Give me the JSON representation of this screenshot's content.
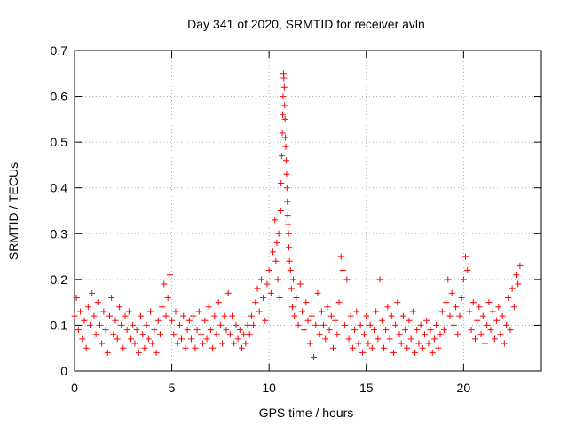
{
  "chart_data": {
    "type": "scatter",
    "title": "Day 341 of 2020, SRMTID for receiver avln",
    "xlabel": "GPS time / hours",
    "ylabel": "SRMTID / TECUs",
    "xlim": [
      0,
      24
    ],
    "ylim": [
      0,
      0.7
    ],
    "xticks": [
      0,
      5,
      10,
      15,
      20
    ],
    "yticks": [
      0,
      0.1,
      0.2,
      0.3,
      0.4,
      0.5,
      0.6,
      0.7
    ],
    "xtick_labels": [
      "0",
      "5",
      "10",
      "15",
      "20"
    ],
    "ytick_labels": [
      "0",
      "0.1",
      "0.2",
      "0.3",
      "0.4",
      "0.5",
      "0.6",
      "0.7"
    ],
    "grid": true,
    "marker": "+",
    "color": "#ff0000",
    "x_data_range": [
      0,
      22.9
    ],
    "series": [
      {
        "name": "SRMTID",
        "points": [
          [
            0.0,
            0.12
          ],
          [
            0.1,
            0.16
          ],
          [
            0.2,
            0.09
          ],
          [
            0.3,
            0.13
          ],
          [
            0.4,
            0.07
          ],
          [
            0.5,
            0.11
          ],
          [
            0.6,
            0.05
          ],
          [
            0.7,
            0.14
          ],
          [
            0.8,
            0.1
          ],
          [
            0.9,
            0.17
          ],
          [
            1.0,
            0.12
          ],
          [
            1.1,
            0.08
          ],
          [
            1.2,
            0.15
          ],
          [
            1.3,
            0.1
          ],
          [
            1.4,
            0.06
          ],
          [
            1.5,
            0.13
          ],
          [
            1.6,
            0.09
          ],
          [
            1.7,
            0.04
          ],
          [
            1.8,
            0.12
          ],
          [
            1.9,
            0.16
          ],
          [
            2.0,
            0.08
          ],
          [
            2.1,
            0.11
          ],
          [
            2.2,
            0.07
          ],
          [
            2.3,
            0.14
          ],
          [
            2.4,
            0.1
          ],
          [
            2.5,
            0.05
          ],
          [
            2.6,
            0.12
          ],
          [
            2.7,
            0.09
          ],
          [
            2.8,
            0.13
          ],
          [
            2.9,
            0.07
          ],
          [
            3.0,
            0.1
          ],
          [
            3.1,
            0.06
          ],
          [
            3.2,
            0.09
          ],
          [
            3.3,
            0.04
          ],
          [
            3.4,
            0.12
          ],
          [
            3.5,
            0.08
          ],
          [
            3.6,
            0.05
          ],
          [
            3.7,
            0.1
          ],
          [
            3.8,
            0.07
          ],
          [
            3.9,
            0.13
          ],
          [
            4.0,
            0.06
          ],
          [
            4.1,
            0.09
          ],
          [
            4.2,
            0.04
          ],
          [
            4.3,
            0.11
          ],
          [
            4.4,
            0.08
          ],
          [
            4.5,
            0.14
          ],
          [
            4.6,
            0.19
          ],
          [
            4.7,
            0.12
          ],
          [
            4.8,
            0.16
          ],
          [
            4.9,
            0.21
          ],
          [
            5.0,
            0.11
          ],
          [
            5.1,
            0.08
          ],
          [
            5.2,
            0.13
          ],
          [
            5.3,
            0.06
          ],
          [
            5.4,
            0.1
          ],
          [
            5.5,
            0.07
          ],
          [
            5.6,
            0.12
          ],
          [
            5.7,
            0.05
          ],
          [
            5.8,
            0.09
          ],
          [
            5.9,
            0.11
          ],
          [
            6.0,
            0.07
          ],
          [
            6.1,
            0.12
          ],
          [
            6.2,
            0.05
          ],
          [
            6.3,
            0.09
          ],
          [
            6.4,
            0.13
          ],
          [
            6.5,
            0.08
          ],
          [
            6.6,
            0.06
          ],
          [
            6.7,
            0.11
          ],
          [
            6.8,
            0.07
          ],
          [
            6.9,
            0.14
          ],
          [
            7.0,
            0.09
          ],
          [
            7.1,
            0.05
          ],
          [
            7.2,
            0.12
          ],
          [
            7.3,
            0.08
          ],
          [
            7.4,
            0.15
          ],
          [
            7.5,
            0.1
          ],
          [
            7.6,
            0.06
          ],
          [
            7.7,
            0.12
          ],
          [
            7.8,
            0.09
          ],
          [
            7.9,
            0.17
          ],
          [
            8.0,
            0.08
          ],
          [
            8.1,
            0.12
          ],
          [
            8.2,
            0.06
          ],
          [
            8.3,
            0.1
          ],
          [
            8.4,
            0.07
          ],
          [
            8.5,
            0.09
          ],
          [
            8.6,
            0.05
          ],
          [
            8.7,
            0.08
          ],
          [
            8.8,
            0.06
          ],
          [
            8.9,
            0.1
          ],
          [
            9.0,
            0.08
          ],
          [
            9.1,
            0.12
          ],
          [
            9.2,
            0.1
          ],
          [
            9.3,
            0.15
          ],
          [
            9.4,
            0.18
          ],
          [
            9.5,
            0.13
          ],
          [
            9.6,
            0.2
          ],
          [
            9.7,
            0.16
          ],
          [
            9.8,
            0.11
          ],
          [
            9.9,
            0.19
          ],
          [
            10.0,
            0.22
          ],
          [
            10.1,
            0.17
          ],
          [
            10.2,
            0.26
          ],
          [
            10.3,
            0.33
          ],
          [
            10.35,
            0.24
          ],
          [
            10.4,
            0.28
          ],
          [
            10.45,
            0.2
          ],
          [
            10.5,
            0.3
          ],
          [
            10.55,
            0.16
          ],
          [
            10.6,
            0.35
          ],
          [
            10.62,
            0.41
          ],
          [
            10.65,
            0.47
          ],
          [
            10.68,
            0.52
          ],
          [
            10.7,
            0.56
          ],
          [
            10.72,
            0.6
          ],
          [
            10.74,
            0.65
          ],
          [
            10.76,
            0.64
          ],
          [
            10.78,
            0.62
          ],
          [
            10.8,
            0.58
          ],
          [
            10.82,
            0.55
          ],
          [
            10.84,
            0.51
          ],
          [
            10.86,
            0.49
          ],
          [
            10.88,
            0.46
          ],
          [
            10.9,
            0.43
          ],
          [
            10.92,
            0.4
          ],
          [
            10.94,
            0.37
          ],
          [
            10.96,
            0.34
          ],
          [
            10.98,
            0.32
          ],
          [
            11.0,
            0.3
          ],
          [
            11.02,
            0.27
          ],
          [
            11.05,
            0.24
          ],
          [
            11.1,
            0.22
          ],
          [
            11.15,
            0.18
          ],
          [
            11.2,
            0.14
          ],
          [
            11.25,
            0.2
          ],
          [
            11.3,
            0.12
          ],
          [
            11.4,
            0.16
          ],
          [
            11.5,
            0.1
          ],
          [
            11.6,
            0.19
          ],
          [
            11.7,
            0.13
          ],
          [
            11.8,
            0.09
          ],
          [
            11.9,
            0.15
          ],
          [
            12.0,
            0.11
          ],
          [
            12.1,
            0.06
          ],
          [
            12.2,
            0.12
          ],
          [
            12.3,
            0.03
          ],
          [
            12.4,
            0.1
          ],
          [
            12.5,
            0.17
          ],
          [
            12.6,
            0.08
          ],
          [
            12.7,
            0.13
          ],
          [
            12.8,
            0.1
          ],
          [
            12.9,
            0.07
          ],
          [
            13.0,
            0.14
          ],
          [
            13.1,
            0.09
          ],
          [
            13.2,
            0.12
          ],
          [
            13.3,
            0.05
          ],
          [
            13.4,
            0.11
          ],
          [
            13.5,
            0.08
          ],
          [
            13.6,
            0.15
          ],
          [
            13.7,
            0.25
          ],
          [
            13.8,
            0.22
          ],
          [
            13.9,
            0.1
          ],
          [
            14.0,
            0.2
          ],
          [
            14.1,
            0.07
          ],
          [
            14.2,
            0.12
          ],
          [
            14.3,
            0.05
          ],
          [
            14.4,
            0.09
          ],
          [
            14.5,
            0.13
          ],
          [
            14.6,
            0.06
          ],
          [
            14.7,
            0.1
          ],
          [
            14.8,
            0.04
          ],
          [
            14.9,
            0.08
          ],
          [
            15.0,
            0.12
          ],
          [
            15.1,
            0.06
          ],
          [
            15.2,
            0.1
          ],
          [
            15.3,
            0.05
          ],
          [
            15.4,
            0.09
          ],
          [
            15.5,
            0.13
          ],
          [
            15.6,
            0.07
          ],
          [
            15.7,
            0.2
          ],
          [
            15.8,
            0.11
          ],
          [
            15.9,
            0.05
          ],
          [
            16.0,
            0.09
          ],
          [
            16.1,
            0.14
          ],
          [
            16.2,
            0.07
          ],
          [
            16.3,
            0.12
          ],
          [
            16.4,
            0.04
          ],
          [
            16.5,
            0.1
          ],
          [
            16.6,
            0.15
          ],
          [
            16.7,
            0.08
          ],
          [
            16.8,
            0.06
          ],
          [
            16.9,
            0.12
          ],
          [
            17.0,
            0.09
          ],
          [
            17.1,
            0.05
          ],
          [
            17.2,
            0.11
          ],
          [
            17.3,
            0.07
          ],
          [
            17.4,
            0.13
          ],
          [
            17.5,
            0.04
          ],
          [
            17.6,
            0.09
          ],
          [
            17.7,
            0.06
          ],
          [
            17.8,
            0.1
          ],
          [
            17.9,
            0.05
          ],
          [
            18.0,
            0.08
          ],
          [
            18.1,
            0.11
          ],
          [
            18.2,
            0.06
          ],
          [
            18.3,
            0.09
          ],
          [
            18.4,
            0.04
          ],
          [
            18.5,
            0.07
          ],
          [
            18.6,
            0.1
          ],
          [
            18.7,
            0.05
          ],
          [
            18.8,
            0.08
          ],
          [
            18.9,
            0.13
          ],
          [
            19.0,
            0.09
          ],
          [
            19.1,
            0.15
          ],
          [
            19.2,
            0.2
          ],
          [
            19.3,
            0.12
          ],
          [
            19.4,
            0.17
          ],
          [
            19.5,
            0.1
          ],
          [
            19.6,
            0.14
          ],
          [
            19.7,
            0.08
          ],
          [
            19.8,
            0.12
          ],
          [
            19.9,
            0.16
          ],
          [
            20.0,
            0.2
          ],
          [
            20.1,
            0.25
          ],
          [
            20.2,
            0.22
          ],
          [
            20.3,
            0.13
          ],
          [
            20.4,
            0.09
          ],
          [
            20.5,
            0.15
          ],
          [
            20.6,
            0.07
          ],
          [
            20.7,
            0.11
          ],
          [
            20.8,
            0.14
          ],
          [
            20.9,
            0.08
          ],
          [
            21.0,
            0.12
          ],
          [
            21.1,
            0.06
          ],
          [
            21.2,
            0.1
          ],
          [
            21.3,
            0.15
          ],
          [
            21.4,
            0.09
          ],
          [
            21.5,
            0.13
          ],
          [
            21.6,
            0.07
          ],
          [
            21.7,
            0.11
          ],
          [
            21.8,
            0.14
          ],
          [
            21.9,
            0.08
          ],
          [
            22.0,
            0.12
          ],
          [
            22.1,
            0.06
          ],
          [
            22.2,
            0.1
          ],
          [
            22.3,
            0.16
          ],
          [
            22.4,
            0.09
          ],
          [
            22.5,
            0.18
          ],
          [
            22.6,
            0.14
          ],
          [
            22.7,
            0.21
          ],
          [
            22.8,
            0.19
          ],
          [
            22.9,
            0.23
          ]
        ]
      }
    ]
  }
}
